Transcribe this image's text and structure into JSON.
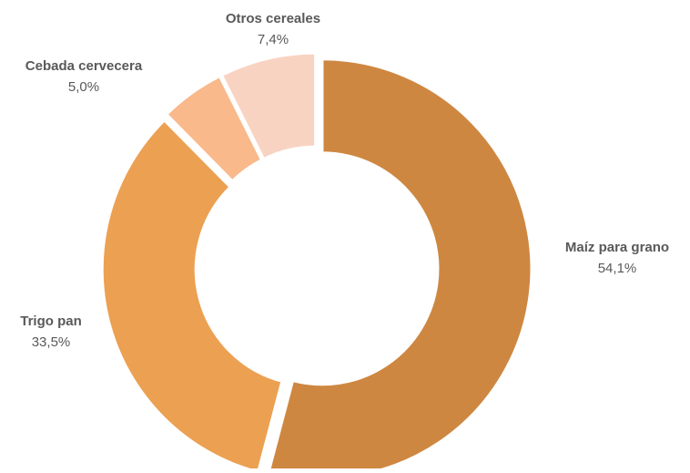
{
  "chart_data": {
    "type": "pie",
    "style": "donut",
    "slices": [
      {
        "label": "Maíz para grano",
        "value": 54.1,
        "value_text": "54,1%",
        "color": "#CE8741"
      },
      {
        "label": "Trigo pan",
        "value": 33.5,
        "value_text": "33,5%",
        "color": "#ECA052"
      },
      {
        "label": "Cebada cervecera",
        "value": 5.0,
        "value_text": "5,0%",
        "color": "#F9B98B"
      },
      {
        "label": "Otros cereales",
        "value": 7.4,
        "value_text": "7,4%",
        "color": "#F9D3C2"
      }
    ],
    "exploded": true,
    "legend": "none"
  }
}
